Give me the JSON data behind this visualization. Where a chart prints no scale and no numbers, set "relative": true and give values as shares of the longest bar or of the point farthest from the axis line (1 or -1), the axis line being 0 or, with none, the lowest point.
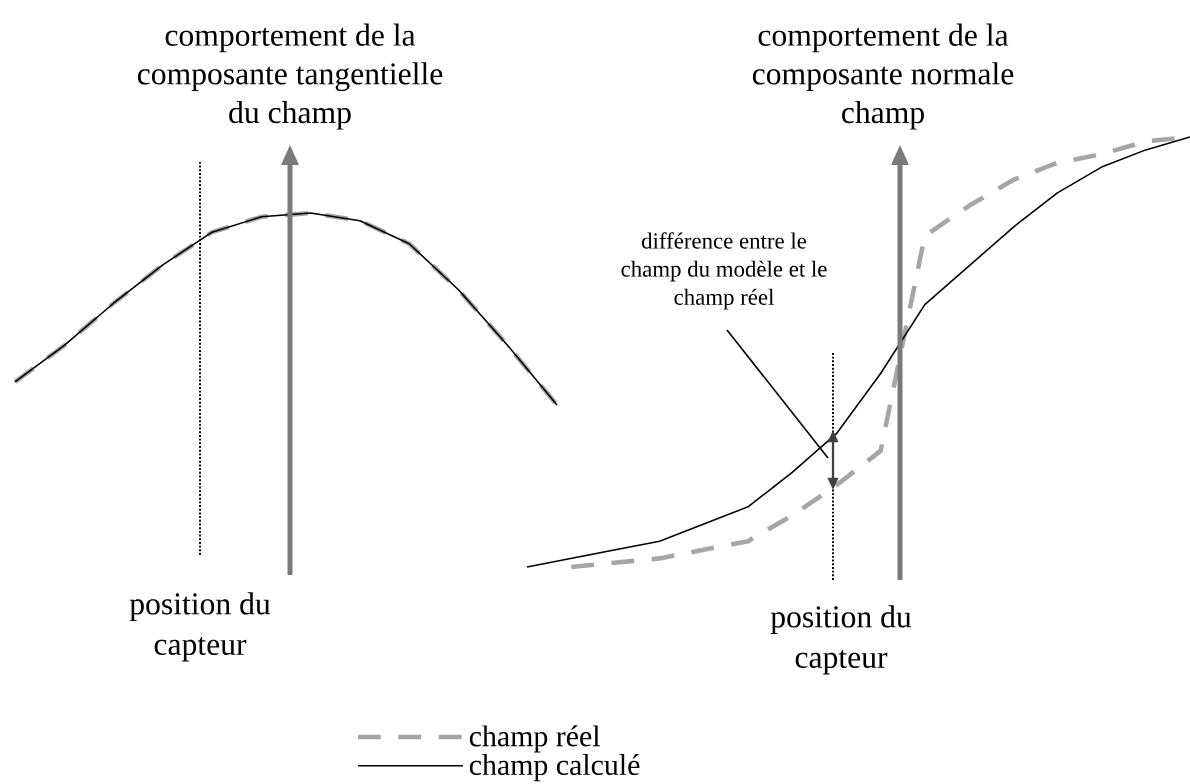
{
  "chart_data": [
    {
      "type": "line",
      "relative": true,
      "ylabel": "comportement de la composante tangentielle du champ",
      "categories": [
        null,
        null,
        null,
        null,
        null,
        null,
        null,
        null,
        null,
        null,
        null,
        null
      ],
      "legend": "bottom",
      "marker": "none",
      "series": [
        {
          "name": "champ réel",
          "color": "#a6a6a6",
          "line_style": "dashed",
          "values": [
            0.12,
            0.31,
            0.53,
            0.73,
            0.9,
            0.98,
            1,
            0.96,
            0.84,
            0.6,
            0.31,
            0
          ]
        },
        {
          "name": "champ calculé",
          "color": "#000000",
          "line_style": "solid",
          "values": [
            0.12,
            0.31,
            0.53,
            0.73,
            0.9,
            0.98,
            1,
            0.96,
            0.84,
            0.6,
            0.31,
            0
          ]
        }
      ],
      "annotations": [
        "position du capteur"
      ]
    },
    {
      "type": "line",
      "relative": true,
      "ylabel": "comportement de la composante normale champ",
      "categories": [
        null,
        null,
        null,
        null,
        null,
        null,
        null,
        null,
        null,
        null,
        null,
        null,
        null,
        null,
        null,
        null
      ],
      "marker": "none",
      "series": [
        {
          "color": "#a6a6a6",
          "line_style": "dashed",
          "values": [
            null,
            0,
            0.01,
            0.02,
            0.04,
            0.06,
            0.12,
            0.19,
            0.27,
            0.77,
            0.84,
            0.9,
            0.94,
            0.96,
            0.99,
            1
          ]
        },
        {
          "color": "#000000",
          "line_style": "solid",
          "values": [
            0,
            0.02,
            0.04,
            0.06,
            0.1,
            0.14,
            0.22,
            0.31,
            0.45,
            0.61,
            0.7,
            0.79,
            0.87,
            0.93,
            0.97,
            1
          ]
        }
      ],
      "annotations": [
        "différence entre le champ du modèle et le champ réel",
        "position du capteur"
      ]
    }
  ]
}
